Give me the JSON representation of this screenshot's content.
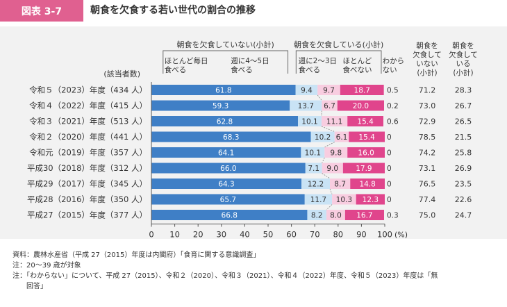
{
  "figure": {
    "tag": "図表 3-7",
    "title": "朝食を欠食する若い世代の割合の推移"
  },
  "chart_data": {
    "type": "bar",
    "orientation": "horizontal",
    "stacked": true,
    "respondents_label": "(該当者数)",
    "categories": [
      "令和５（2023）年度（434 人）",
      "令和４（2022）年度（415 人）",
      "令和３（2021）年度（513 人）",
      "令和２（2020）年度（441 人）",
      "令和元（2019）年度（357 人）",
      "平成30（2018）年度（312 人）",
      "平成29（2017）年度（345 人）",
      "平成28（2016）年度（350 人）",
      "平成27（2015）年度（377 人）"
    ],
    "series": [
      {
        "name": "ほとんど毎日食べる",
        "color": "#3f7fc6",
        "label_color": "#ffffff",
        "values": [
          61.8,
          59.3,
          62.8,
          68.3,
          64.1,
          66.0,
          64.3,
          65.7,
          66.8
        ],
        "labels": [
          "61.8",
          "59.3",
          "62.8",
          "68.3",
          "64.1",
          "66.0",
          "64.3",
          "65.7",
          "66.8"
        ]
      },
      {
        "name": "週に4～5日食べる",
        "color": "#c9e3f5",
        "label_color": "#333333",
        "values": [
          9.4,
          13.7,
          10.1,
          10.2,
          10.1,
          7.1,
          12.2,
          11.7,
          8.2
        ],
        "labels": [
          "9.4",
          "13.7",
          "10.1",
          "10.2",
          "10.1",
          "7.1",
          "12.2",
          "11.7",
          "8.2"
        ]
      },
      {
        "name": "週に2～3日食べる",
        "color": "#f8cde0",
        "label_color": "#333333",
        "values": [
          9.7,
          6.7,
          11.1,
          6.1,
          9.8,
          9.0,
          8.7,
          10.3,
          8.0
        ],
        "labels": [
          "9.7",
          "6.7",
          "11.1",
          "6.1",
          "9.8",
          "9.0",
          "8.7",
          "10.3",
          "8.0"
        ]
      },
      {
        "name": "ほとんど食べない",
        "color": "#e0458c",
        "label_color": "#ffffff",
        "values": [
          18.7,
          20.0,
          15.4,
          15.4,
          16.0,
          17.9,
          14.8,
          12.3,
          16.7
        ],
        "labels": [
          "18.7",
          "20.0",
          "15.4",
          "15.4",
          "16.0",
          "17.9",
          "14.8",
          "12.3",
          "16.7"
        ]
      },
      {
        "name": "わからない",
        "color": "#ffffff",
        "values": [
          0.5,
          0.2,
          0.6,
          0,
          0,
          0,
          0,
          0,
          0.3
        ],
        "labels": [
          "0.5",
          "0.2",
          "0.6",
          "0",
          "0",
          "0",
          "0",
          "0",
          "0.3"
        ]
      }
    ],
    "group_headers": {
      "not_skipping": "朝食を欠食していない(小計)",
      "skipping": "朝食を欠食している(小計)"
    },
    "legend_labels": [
      {
        "line1": "ほとんど毎日",
        "line2": "食べる"
      },
      {
        "line1": "週に4～5日",
        "line2": "食べる"
      },
      {
        "line1": "週に2～3日",
        "line2": "食べる"
      },
      {
        "line1": "ほとんど",
        "line2": "食べない"
      },
      {
        "line1": "わから",
        "line2": "ない"
      }
    ],
    "subtotal_columns": [
      {
        "header_lines": [
          "朝食を",
          "欠食して",
          "いない",
          "(小計)"
        ],
        "values": [
          "71.2",
          "73.0",
          "72.9",
          "78.5",
          "74.2",
          "73.1",
          "76.5",
          "77.4",
          "75.0"
        ]
      },
      {
        "header_lines": [
          "朝食を",
          "欠食して",
          "いる",
          "(小計)"
        ],
        "values": [
          "28.3",
          "26.7",
          "26.5",
          "21.5",
          "25.8",
          "26.9",
          "23.5",
          "22.6",
          "24.7"
        ]
      }
    ],
    "x_ticks": [
      0,
      10,
      20,
      30,
      40,
      50,
      60,
      70,
      80,
      90,
      100
    ],
    "x_unit": "(%)",
    "xlim": [
      0,
      100
    ]
  },
  "notes": [
    "資料：農林水産省（平成 27（2015）年度は内閣府）「食育に関する意識調査」",
    "注：20～39 歳が対象",
    "注：「わからない」について、平成 27（2015）、令和２（2020）、令和３（2021）、令和４（2022）年度、令和５（2023）年度は「無",
    "　　回答」"
  ]
}
